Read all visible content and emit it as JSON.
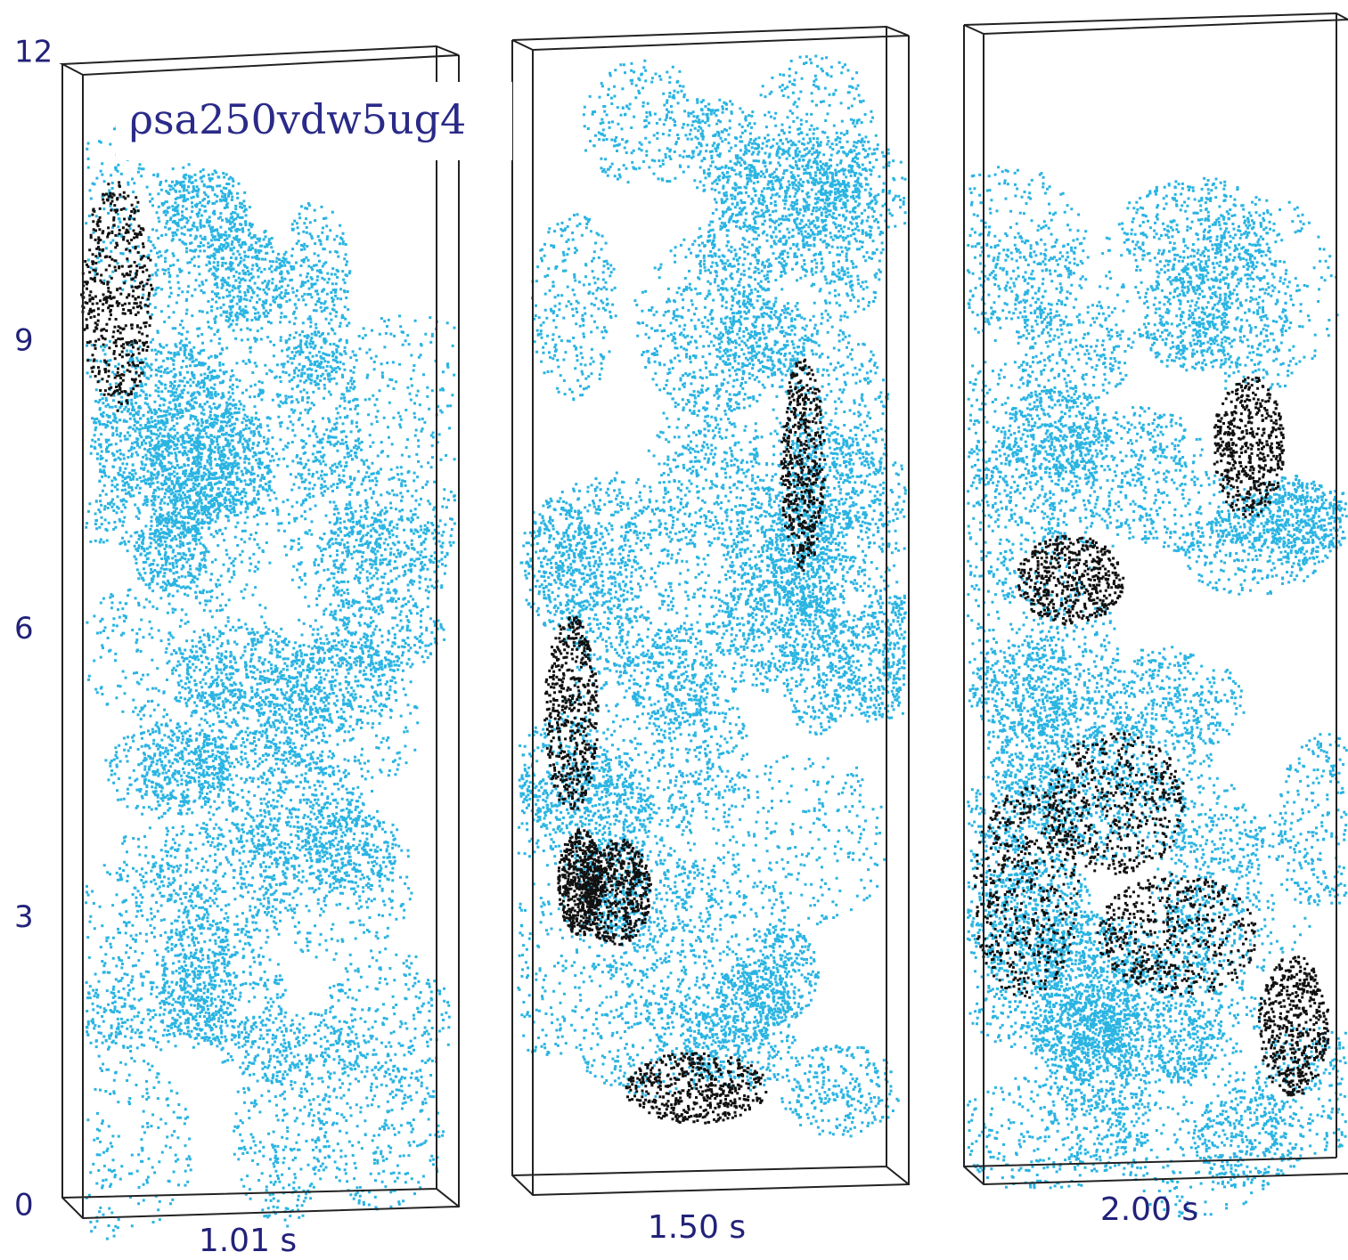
{
  "figure": {
    "label": "ρsa250vdw5ug4",
    "y_axis": {
      "ticks": [
        0,
        3,
        6,
        9,
        12
      ]
    },
    "panels": [
      {
        "time": "1.01 s"
      },
      {
        "time": "1.50 s"
      },
      {
        "time": "2.00 s"
      }
    ]
  }
}
